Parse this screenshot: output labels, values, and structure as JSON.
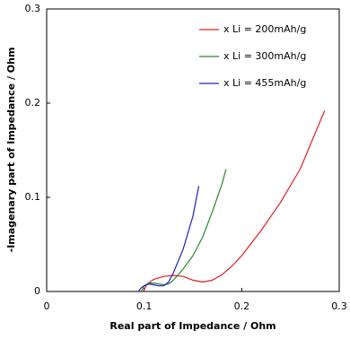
{
  "chart_data": {
    "type": "line",
    "x_label": "Real part of Impedance  / Ohm",
    "y_label": "-Imagenary part of Impedance  / Ohm",
    "xlim": [
      0,
      0.3
    ],
    "ylim": [
      0,
      0.3
    ],
    "xticks": [
      0,
      0.1,
      0.2,
      0.3
    ],
    "yticks": [
      0,
      0.1,
      0.2,
      0.3
    ],
    "grid": false,
    "legend": "upper right",
    "series": [
      {
        "name": "x Li = 200mAh/g",
        "color": "#e02020",
        "x": [
          0.099,
          0.103,
          0.11,
          0.12,
          0.13,
          0.14,
          0.15,
          0.16,
          0.17,
          0.18,
          0.19,
          0.2,
          0.22,
          0.24,
          0.26,
          0.285
        ],
        "values": [
          0,
          0.008,
          0.013,
          0.016,
          0.017,
          0.016,
          0.012,
          0.01,
          0.012,
          0.018,
          0.027,
          0.038,
          0.065,
          0.095,
          0.13,
          0.192
        ]
      },
      {
        "name": "x Li = 300mAh/g",
        "color": "#2a8a2a",
        "x": [
          0.097,
          0.1,
          0.105,
          0.11,
          0.115,
          0.12,
          0.125,
          0.13,
          0.135,
          0.14,
          0.15,
          0.16,
          0.17,
          0.175,
          0.18,
          0.184
        ],
        "values": [
          0,
          0.006,
          0.009,
          0.009,
          0.008,
          0.007,
          0.008,
          0.012,
          0.018,
          0.024,
          0.038,
          0.058,
          0.085,
          0.1,
          0.115,
          0.13
        ]
      },
      {
        "name": "x Li = 455mAh/g",
        "color": "#2020c0",
        "x": [
          0.094,
          0.097,
          0.1,
          0.105,
          0.11,
          0.115,
          0.12,
          0.125,
          0.13,
          0.14,
          0.15,
          0.156
        ],
        "values": [
          0,
          0.004,
          0.006,
          0.008,
          0.007,
          0.006,
          0.006,
          0.01,
          0.02,
          0.045,
          0.08,
          0.112
        ]
      }
    ]
  }
}
